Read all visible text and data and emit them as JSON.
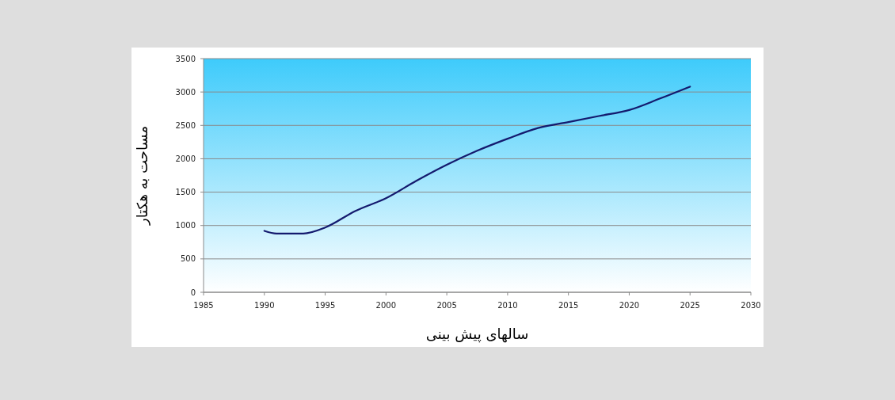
{
  "chart_data": {
    "type": "line",
    "xlabel": "سالهای پیش بینی",
    "ylabel": "مساحت به هکتار",
    "x": [
      1990,
      1991,
      1993.2,
      1995,
      1997.5,
      2000,
      2002.5,
      2005,
      2007.5,
      2010,
      2012.5,
      2015,
      2017.5,
      2020,
      2022.5,
      2025
    ],
    "series": [
      {
        "color": "#141a6e",
        "values": [
          920,
          880,
          880,
          970,
          1220,
          1410,
          1670,
          1910,
          2120,
          2300,
          2460,
          2550,
          2640,
          2730,
          2900,
          3080
        ]
      }
    ],
    "xlim": [
      1985,
      2030
    ],
    "xticks": [
      1985,
      1990,
      1995,
      2000,
      2005,
      2010,
      2015,
      2020,
      2025,
      2030
    ],
    "ylim": [
      0,
      3500
    ],
    "yticks": [
      0,
      500,
      1000,
      1500,
      2000,
      2500,
      3000,
      3500
    ],
    "grid": "y",
    "marker": "none",
    "line_style": "solid"
  }
}
